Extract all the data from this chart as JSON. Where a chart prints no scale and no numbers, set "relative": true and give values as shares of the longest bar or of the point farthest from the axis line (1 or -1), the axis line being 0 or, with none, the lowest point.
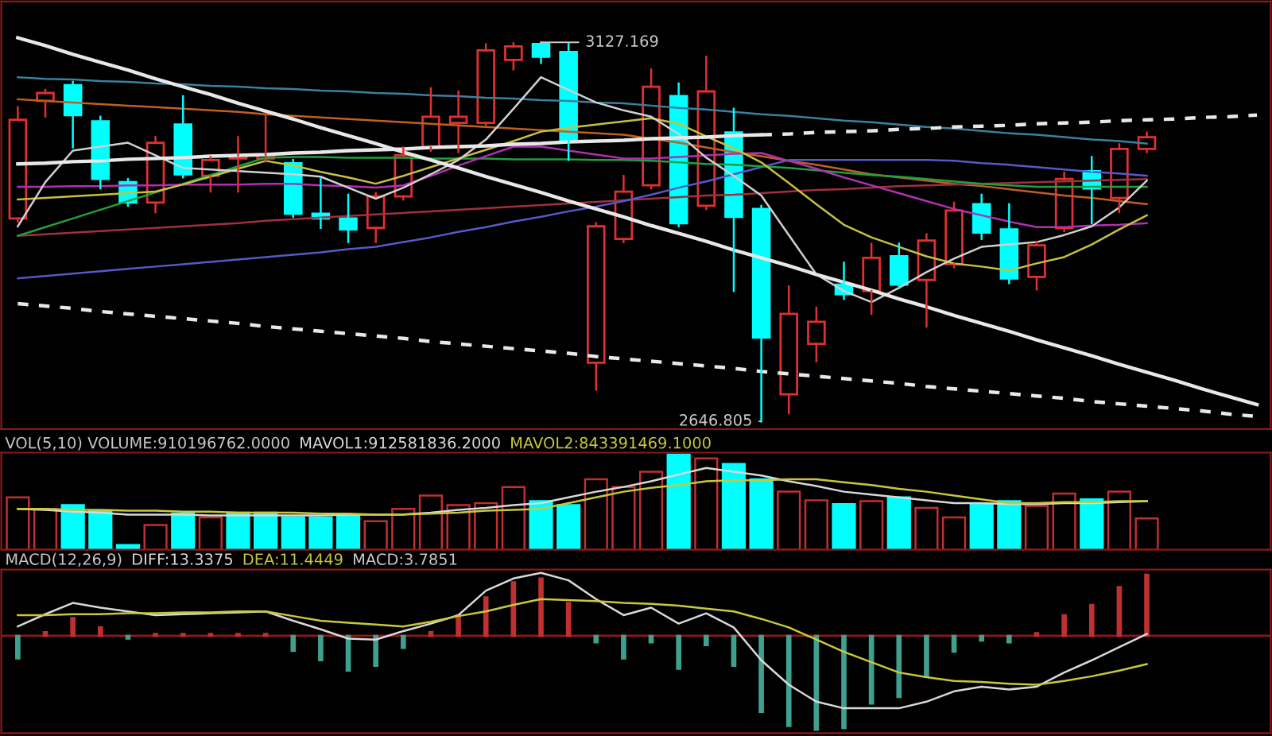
{
  "chart_data": [
    {
      "type": "candlestick",
      "categories": [
        null,
        null,
        null,
        null,
        null,
        null,
        null,
        null,
        null,
        null,
        null,
        null,
        null,
        null,
        null,
        null,
        null,
        null,
        null,
        null,
        null,
        null,
        null,
        null,
        null,
        null,
        null,
        null,
        null,
        null,
        null,
        null,
        null,
        null,
        null,
        null,
        null,
        null,
        null,
        null,
        null,
        null,
        null,
        null,
        null,
        null
      ],
      "ylim": [
        2637,
        3179
      ],
      "ohlc": [
        [
          2904,
          3045,
          2900,
          3029
        ],
        [
          3053,
          3067,
          3033,
          3063
        ],
        [
          3073,
          3077,
          2994,
          3035
        ],
        [
          3027,
          3033,
          2942,
          2954
        ],
        [
          2950,
          2954,
          2920,
          2924
        ],
        [
          2924,
          3007,
          2912,
          3000
        ],
        [
          3023,
          3059,
          2956,
          2960
        ],
        [
          2958,
          2982,
          2938,
          2978
        ],
        [
          2980,
          3007,
          2938,
          2984
        ],
        [
          2980,
          3035,
          2976,
          2984
        ],
        [
          2974,
          2978,
          2906,
          2910
        ],
        [
          2910,
          2954,
          2892,
          2904
        ],
        [
          2904,
          2934,
          2874,
          2890
        ],
        [
          2892,
          2936,
          2874,
          2932
        ],
        [
          2932,
          2994,
          2928,
          2984
        ],
        [
          2994,
          3069,
          2990,
          3033
        ],
        [
          3025,
          3065,
          2988,
          3033
        ],
        [
          3025,
          3125,
          3023,
          3117
        ],
        [
          3105,
          3126,
          3093,
          3122
        ],
        [
          3125,
          3127.169,
          3101,
          3109
        ],
        [
          3115,
          3126,
          2978,
          3003
        ],
        [
          2721,
          2898,
          2687,
          2894
        ],
        [
          2878,
          2958,
          2874,
          2938
        ],
        [
          2946,
          3093,
          2942,
          3071
        ],
        [
          3059,
          3075,
          2894,
          2898
        ],
        [
          2920,
          3109,
          2916,
          3065
        ],
        [
          3013,
          3043,
          2812,
          2906
        ],
        [
          2916,
          2920,
          2646.805,
          2753
        ],
        [
          2681,
          2818,
          2657,
          2783
        ],
        [
          2745,
          2791,
          2723,
          2773
        ],
        [
          2820,
          2848,
          2802,
          2808
        ],
        [
          2812,
          2872,
          2783,
          2854
        ],
        [
          2856,
          2872,
          2816,
          2820
        ],
        [
          2826,
          2884,
          2767,
          2876
        ],
        [
          2846,
          2924,
          2842,
          2914
        ],
        [
          2922,
          2934,
          2878,
          2886
        ],
        [
          2890,
          2922,
          2822,
          2828
        ],
        [
          2830,
          2874,
          2814,
          2870
        ],
        [
          2892,
          2962,
          2888,
          2954
        ],
        [
          2964,
          2982,
          2898,
          2942
        ],
        [
          2930,
          2998,
          2912,
          2992
        ],
        [
          2992,
          3013,
          2988,
          3007
        ],
        null,
        null,
        null,
        null
      ],
      "colors": [
        "#e03030",
        "#e03030",
        "#00ffff",
        "#00ffff",
        "#00ffff",
        "#e03030",
        "#00ffff",
        "#e03030",
        "#e03030",
        "#e03030",
        "#00ffff",
        "#00ffff",
        "#00ffff",
        "#e03030",
        "#e03030",
        "#e03030",
        "#e03030",
        "#e03030",
        "#e03030",
        "#00ffff",
        "#00ffff",
        "#e03030",
        "#e03030",
        "#e03030",
        "#00ffff",
        "#e03030",
        "#00ffff",
        "#00ffff",
        "#e03030",
        "#e03030",
        "#00ffff",
        "#e03030",
        "#00ffff",
        "#e03030",
        "#e03030",
        "#00ffff",
        "#00ffff",
        "#e03030",
        "#e03030",
        "#00ffff",
        "#e03030",
        "#e03030",
        null,
        null,
        null,
        null
      ],
      "series": [
        {
          "type": "line",
          "color": "#3a80a0",
          "values": [
            3083,
            3081,
            3080,
            3078,
            3077,
            3075,
            3074,
            3072,
            3071,
            3069,
            3068,
            3066,
            3065,
            3063,
            3062,
            3060,
            3059,
            3057,
            3056,
            3054,
            3053,
            3051,
            3050,
            3047,
            3044,
            3042,
            3039,
            3036,
            3034,
            3031,
            3028,
            3026,
            3023,
            3020,
            3018,
            3015,
            3012,
            3010,
            3007,
            3004,
            3002,
            2999,
            null,
            null,
            null,
            null
          ]
        },
        {
          "type": "line",
          "color": "#c06020",
          "values": [
            3055,
            3053,
            3051,
            3049,
            3047,
            3045,
            3043,
            3041,
            3039,
            3036,
            3034,
            3032,
            3030,
            3028,
            3026,
            3024,
            3022,
            3020,
            3018,
            3016,
            3014,
            3012,
            3010,
            3005,
            3000,
            2994,
            2988,
            2983,
            2977,
            2972,
            2966,
            2960,
            2956,
            2952,
            2948,
            2945,
            2941,
            2937,
            2933,
            2930,
            2926,
            2922,
            null,
            null,
            null,
            null
          ]
        },
        {
          "type": "line",
          "color": "#a03040",
          "values": [
            2882,
            2884,
            2886,
            2888,
            2890,
            2892,
            2894,
            2896,
            2898,
            2901,
            2903,
            2905,
            2907,
            2909,
            2911,
            2913,
            2915,
            2917,
            2919,
            2921,
            2923,
            2925,
            2927,
            2929,
            2931,
            2933,
            2934,
            2936,
            2938,
            2940,
            2941,
            2943,
            2945,
            2946,
            2947,
            2948,
            2949,
            2950,
            2951,
            2952,
            2953,
            2954,
            null,
            null,
            null,
            null
          ]
        },
        {
          "type": "line",
          "color": "#5858c8",
          "values": [
            2828,
            2831,
            2834,
            2837,
            2840,
            2843,
            2846,
            2849,
            2852,
            2855,
            2858,
            2861,
            2865,
            2868,
            2874,
            2880,
            2887,
            2893,
            2900,
            2906,
            2913,
            2919,
            2926,
            2934,
            2943,
            2951,
            2960,
            2969,
            2978,
            2978,
            2978,
            2978,
            2978,
            2978,
            2977,
            2974,
            2972,
            2969,
            2966,
            2963,
            2961,
            2958,
            null,
            null,
            null,
            null
          ]
        },
        {
          "type": "line",
          "color": "#20a040",
          "values": [
            2882,
            2893,
            2904,
            2915,
            2926,
            2937,
            2948,
            2959,
            2970,
            2981,
            2982,
            2982,
            2981,
            2981,
            2981,
            2980,
            2980,
            2980,
            2979,
            2979,
            2979,
            2978,
            2978,
            2977,
            2975,
            2973,
            2972,
            2970,
            2968,
            2965,
            2962,
            2959,
            2957,
            2954,
            2951,
            2948,
            2946,
            2944,
            2944,
            2944,
            2944,
            2944,
            null,
            null,
            null,
            null
          ]
        },
        {
          "type": "line",
          "color": "#b030b0",
          "values": [
            2944,
            2944,
            2945,
            2945,
            2946,
            2946,
            2947,
            2947,
            2947,
            2948,
            2948,
            2946,
            2945,
            2943,
            2946,
            2958,
            2971,
            2983,
            2995,
            2995,
            2990,
            2985,
            2980,
            2980,
            2982,
            2984,
            2986,
            2987,
            2977,
            2967,
            2956,
            2946,
            2936,
            2926,
            2916,
            2908,
            2900,
            2893,
            2893,
            2895,
            2896,
            2898,
            null,
            null,
            null,
            null
          ]
        },
        {
          "type": "line",
          "color": "#c8c040",
          "values": [
            2928,
            2930,
            2932,
            2934,
            2936,
            2938,
            2947,
            2957,
            2967,
            2977,
            2971,
            2963,
            2956,
            2948,
            2958,
            2969,
            2980,
            2991,
            3002,
            3014,
            3019,
            3023,
            3027,
            3031,
            3024,
            3008,
            2993,
            2975,
            2949,
            2922,
            2896,
            2880,
            2868,
            2856,
            2847,
            2843,
            2838,
            2847,
            2855,
            2871,
            2890,
            2908,
            null,
            null,
            null,
            null
          ]
        },
        {
          "type": "line",
          "color": "#d0d0d0",
          "values": [
            2894,
            2950,
            2990,
            2995,
            3000,
            2984,
            2968,
            2966,
            2964,
            2962,
            2960,
            2957,
            2943,
            2929,
            2943,
            2960,
            2978,
            3004,
            3043,
            3083,
            3067,
            3051,
            3041,
            3033,
            3011,
            2981,
            2958,
            2933,
            2883,
            2833,
            2812,
            2798,
            2816,
            2836,
            2853,
            2868,
            2871,
            2874,
            2883,
            2894,
            2918,
            2952,
            null,
            null,
            null,
            null
          ]
        },
        {
          "type": "line",
          "color": "#e8e8e8",
          "line_style": "solid",
          "values": [
            3133,
            3123,
            3112,
            3102,
            3092,
            3081,
            3071,
            3061,
            3050,
            3040,
            3030,
            3019,
            3009,
            2999,
            2988,
            2978,
            2968,
            2957,
            2947,
            2937,
            2926,
            2916,
            2906,
            2895,
            2885,
            2875,
            2864,
            2854,
            2844,
            2833,
            2823,
            2813,
            2802,
            2792,
            2781,
            2771,
            2761,
            2750,
            2740,
            2730,
            2719,
            2709,
            2699,
            2688,
            2678,
            2668
          ]
        },
        {
          "type": "line",
          "color": "#e8e8e8",
          "line_style": "solid",
          "values": [
            2973,
            2974,
            2976,
            2977,
            2979,
            2980,
            2981,
            2983,
            2984,
            2985,
            2987,
            2988,
            2990,
            2991,
            2992,
            2994,
            2995,
            2996,
            2998,
            2999,
            3001,
            3002,
            3003,
            3005,
            3006,
            3007,
            3009,
            3010,
            null,
            null,
            null,
            null,
            null,
            null,
            null,
            null,
            null,
            null,
            null,
            null,
            null,
            null,
            null,
            null,
            null,
            null
          ]
        },
        {
          "type": "line",
          "color": "#e8e8e8",
          "line_style": "dashed",
          "values": [
            null,
            null,
            null,
            null,
            null,
            null,
            null,
            null,
            null,
            null,
            null,
            null,
            null,
            null,
            null,
            null,
            null,
            null,
            null,
            null,
            null,
            null,
            null,
            null,
            null,
            null,
            null,
            3010,
            3011,
            3013,
            3014,
            3015,
            3017,
            3018,
            3020,
            3021,
            3022,
            3024,
            3025,
            3026,
            3028,
            3029,
            3030,
            3032,
            3033,
            3035
          ]
        },
        {
          "type": "line",
          "color": "#e8e8e8",
          "line_style": "dashed",
          "values": [
            2796,
            2793,
            2790,
            2786,
            2783,
            2780,
            2777,
            2774,
            2771,
            2767,
            2764,
            2761,
            2758,
            2755,
            2752,
            2748,
            2745,
            2742,
            2739,
            2736,
            2733,
            2729,
            2726,
            2723,
            2720,
            2717,
            2714,
            2710,
            2707,
            2704,
            2701,
            2698,
            2695,
            2691,
            2688,
            2685,
            2682,
            2679,
            2676,
            2672,
            2669,
            2666,
            2663,
            2660,
            2656,
            2653
          ]
        }
      ],
      "annotations": [
        "3127.169",
        "2646.805"
      ]
    },
    {
      "type": "bar",
      "title": "VOL(5,10) VOLUME:910196762.0000",
      "relative": true,
      "categories": [
        null,
        null,
        null,
        null,
        null,
        null,
        null,
        null,
        null,
        null,
        null,
        null,
        null,
        null,
        null,
        null,
        null,
        null,
        null,
        null,
        null,
        null,
        null,
        null,
        null,
        null,
        null,
        null,
        null,
        null,
        null,
        null,
        null,
        null,
        null,
        null,
        null,
        null,
        null,
        null,
        null,
        null,
        null,
        null,
        null,
        null
      ],
      "series": [
        {
          "type": "bar",
          "colors": [
            "#c03030",
            "#c03030",
            "#00ffff",
            "#00ffff",
            "#00ffff",
            "#c03030",
            "#00ffff",
            "#c03030",
            "#00ffff",
            "#00ffff",
            "#00ffff",
            "#00ffff",
            "#00ffff",
            "#c03030",
            "#c03030",
            "#c03030",
            "#c03030",
            "#c03030",
            "#c03030",
            "#00ffff",
            "#00ffff",
            "#c03030",
            "#c03030",
            "#c03030",
            "#00ffff",
            "#c03030",
            "#00ffff",
            "#00ffff",
            "#c03030",
            "#c03030",
            "#00ffff",
            "#c03030",
            "#00ffff",
            "#c03030",
            "#c03030",
            "#00ffff",
            "#00ffff",
            "#c03030",
            "#c03030",
            "#00ffff",
            "#c03030",
            "#c03030",
            null,
            null,
            null,
            null
          ],
          "values": [
            0.55,
            0.43,
            0.47,
            0.41,
            0.05,
            0.26,
            0.38,
            0.34,
            0.39,
            0.39,
            0.34,
            0.34,
            0.36,
            0.3,
            0.43,
            0.57,
            0.47,
            0.49,
            0.66,
            0.51,
            0.47,
            0.74,
            0.66,
            0.82,
            1,
            0.96,
            0.9,
            0.74,
            0.61,
            0.52,
            0.48,
            0.51,
            0.55,
            0.44,
            0.34,
            0.48,
            0.51,
            0.46,
            0.59,
            0.53,
            0.61,
            0.33,
            null,
            null,
            null,
            null
          ]
        },
        {
          "name": "MAVOL1:912581836.2000",
          "type": "line",
          "color": "#d8d8d8",
          "values": [
            0.43,
            0.42,
            0.4,
            0.39,
            0.37,
            0.37,
            0.37,
            0.36,
            0.36,
            0.36,
            0.36,
            0.36,
            0.37,
            0.37,
            0.37,
            0.39,
            0.42,
            0.44,
            0.47,
            0.49,
            0.55,
            0.61,
            0.66,
            0.72,
            0.79,
            0.86,
            0.82,
            0.78,
            0.72,
            0.67,
            0.61,
            0.58,
            0.55,
            0.52,
            0.49,
            0.49,
            0.48,
            0.48,
            0.49,
            0.49,
            0.5,
            0.51,
            null,
            null,
            null,
            null
          ]
        },
        {
          "name": "MAVOL2:843391469.1000",
          "type": "line",
          "color": "#c8c83c",
          "values": [
            0.43,
            0.43,
            0.42,
            0.42,
            0.41,
            0.41,
            0.4,
            0.4,
            0.39,
            0.39,
            0.39,
            0.38,
            0.38,
            0.37,
            0.37,
            0.38,
            0.39,
            0.41,
            0.42,
            0.43,
            0.49,
            0.55,
            0.61,
            0.65,
            0.68,
            0.72,
            0.73,
            0.73,
            0.74,
            0.74,
            0.71,
            0.68,
            0.64,
            0.61,
            0.57,
            0.53,
            0.49,
            0.49,
            0.5,
            0.5,
            0.51,
            0.51,
            null,
            null,
            null,
            null
          ]
        }
      ]
    },
    {
      "type": "bar",
      "title": "MACD(12,26,9)",
      "annotations": [
        "MACD:3.7851"
      ],
      "ref_lines": [
        {
          "axis": "y",
          "value": 0,
          "color": "#8a1a1a"
        }
      ],
      "relative": true,
      "categories": [
        null,
        null,
        null,
        null,
        null,
        null,
        null,
        null,
        null,
        null,
        null,
        null,
        null,
        null,
        null,
        null,
        null,
        null,
        null,
        null,
        null,
        null,
        null,
        null,
        null,
        null,
        null,
        null,
        null,
        null,
        null,
        null,
        null,
        null,
        null,
        null,
        null,
        null,
        null,
        null,
        null,
        null,
        null,
        null,
        null,
        null
      ],
      "series": [
        {
          "name": "DIFF:13.3375",
          "type": "line",
          "color": "#d8d8d8",
          "values": [
            0.1,
            0.23,
            0.35,
            0.3,
            0.26,
            0.22,
            0.23,
            0.24,
            0.25,
            0.26,
            0.16,
            0.07,
            -0.03,
            -0.04,
            0.05,
            0.13,
            0.22,
            0.48,
            0.61,
            0.67,
            0.59,
            0.39,
            0.22,
            0.3,
            0.13,
            0.24,
            0.09,
            -0.26,
            -0.52,
            -0.7,
            -0.77,
            -0.77,
            -0.77,
            -0.7,
            -0.59,
            -0.54,
            -0.57,
            -0.54,
            -0.39,
            -0.26,
            -0.12,
            0.02,
            null,
            null,
            null,
            null
          ]
        },
        {
          "name": "DEA:11.4449",
          "type": "line",
          "color": "#c8c83c",
          "values": [
            0.22,
            0.22,
            0.23,
            0.23,
            0.24,
            0.24,
            0.25,
            0.25,
            0.26,
            0.26,
            0.21,
            0.16,
            0.14,
            0.12,
            0.1,
            0.15,
            0.21,
            0.26,
            0.33,
            0.39,
            0.38,
            0.37,
            0.35,
            0.34,
            0.32,
            0.29,
            0.26,
            0.18,
            0.09,
            -0.04,
            -0.17,
            -0.28,
            -0.39,
            -0.44,
            -0.48,
            -0.49,
            -0.51,
            -0.52,
            -0.48,
            -0.43,
            -0.37,
            -0.3,
            null,
            null,
            null,
            null
          ]
        },
        {
          "type": "bar",
          "colors": [
            "#40a090",
            "#c03030",
            "#c03030",
            "#c03030",
            "#40a090",
            "#c03030",
            "#c03030",
            "#c03030",
            "#c03030",
            "#c03030",
            "#40a090",
            "#40a090",
            "#40a090",
            "#40a090",
            "#40a090",
            "#c03030",
            "#c03030",
            "#c03030",
            "#c03030",
            "#c03030",
            "#c03030",
            "#40a090",
            "#40a090",
            "#40a090",
            "#40a090",
            "#40a090",
            "#40a090",
            "#40a090",
            "#40a090",
            "#40a090",
            "#40a090",
            "#40a090",
            "#40a090",
            "#40a090",
            "#40a090",
            "#40a090",
            "#40a090",
            "#c03030",
            "#c03030",
            "#c03030",
            "#c03030",
            "#c03030",
            null,
            null,
            null,
            null
          ],
          "values": [
            -0.24,
            0.04,
            0.19,
            0.09,
            -0.03,
            0.02,
            0.02,
            0.02,
            0.02,
            0.02,
            -0.16,
            -0.26,
            -0.37,
            -0.32,
            -0.13,
            0.04,
            0.22,
            0.41,
            0.57,
            0.61,
            0.35,
            -0.07,
            -0.24,
            -0.07,
            -0.35,
            -0.1,
            -0.32,
            -0.81,
            -0.96,
            -1,
            -0.98,
            -0.72,
            -0.65,
            -0.42,
            -0.17,
            -0.05,
            -0.07,
            0.03,
            0.22,
            0.33,
            0.52,
            0.65,
            null,
            null,
            null,
            null
          ]
        }
      ]
    }
  ]
}
